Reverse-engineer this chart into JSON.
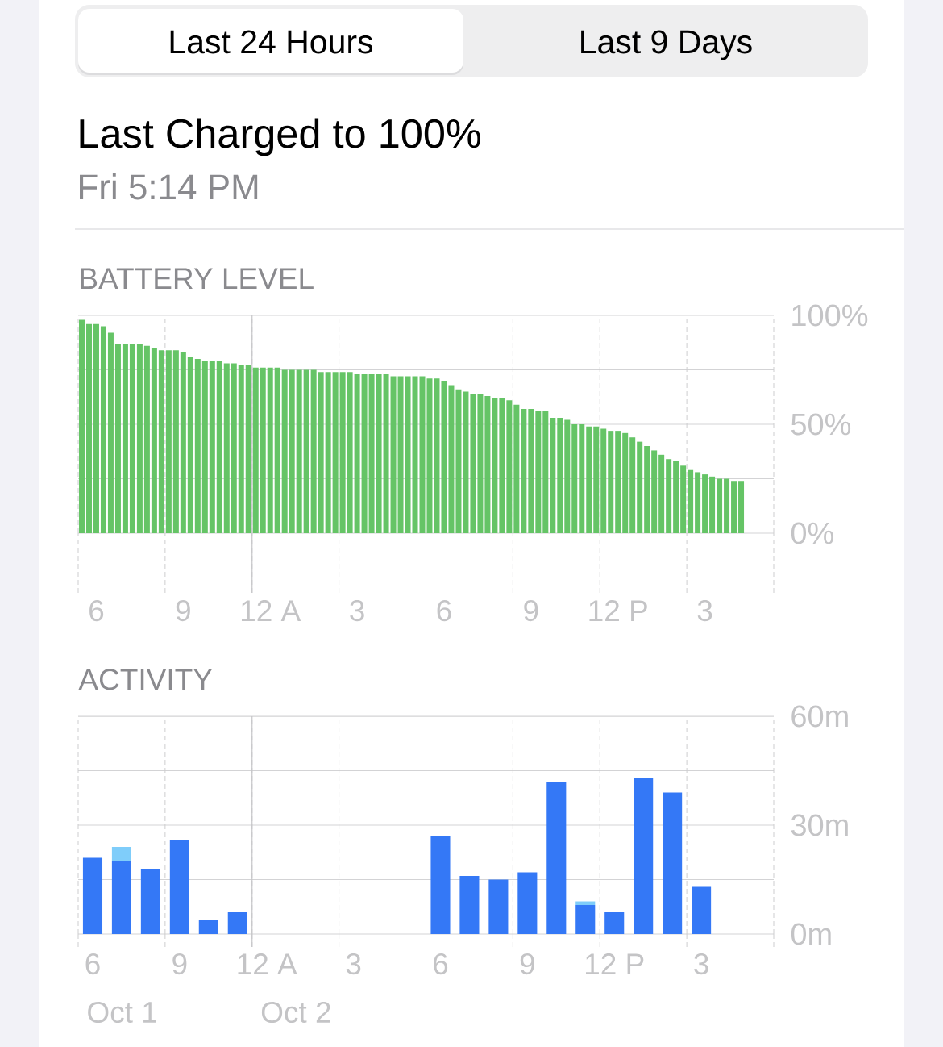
{
  "chart_data": [
    {
      "type": "other",
      "title": "Last Charged to 100%",
      "subtitle": "Fri 5:14 PM",
      "annotations": [
        "Last 24 Hours",
        "Last 9 Days"
      ]
    },
    {
      "type": "bar",
      "title": "BATTERY LEVEL",
      "color": "#65c466",
      "categories": [
        null,
        null,
        "6",
        null,
        null,
        null,
        null,
        null,
        null,
        null,
        null,
        null,
        null,
        null,
        "9",
        null,
        null,
        null,
        null,
        null,
        null,
        null,
        null,
        null,
        null,
        null,
        "12 A",
        null,
        null,
        null,
        null,
        null,
        null,
        null,
        null,
        null,
        null,
        null,
        "3",
        null,
        null,
        null,
        null,
        null,
        null,
        null,
        null,
        null,
        null,
        null,
        "6",
        null,
        null,
        null,
        null,
        null,
        null,
        null,
        null,
        null,
        null,
        null,
        "9",
        null,
        null,
        null,
        null,
        null,
        null,
        null,
        null,
        null,
        null,
        null,
        "12 P",
        null,
        null,
        null,
        null,
        null,
        null,
        null,
        null,
        null,
        null,
        null,
        "3",
        null,
        null,
        null,
        null,
        null,
        null,
        null,
        null,
        null
      ],
      "values": [
        98,
        96,
        96,
        95,
        92,
        87,
        87,
        87,
        87,
        86,
        85,
        84,
        84,
        84,
        83,
        81,
        80,
        79,
        79,
        79,
        78,
        78,
        77,
        77,
        76,
        76,
        76,
        76,
        75,
        75,
        75,
        75,
        75,
        74,
        74,
        74,
        74,
        74,
        73,
        73,
        73,
        73,
        73,
        72,
        72,
        72,
        72,
        72,
        71,
        71,
        70,
        68,
        66,
        65,
        64,
        64,
        63,
        62,
        62,
        61,
        59,
        57,
        57,
        56,
        56,
        53,
        53,
        52,
        50,
        50,
        49,
        49,
        48,
        47,
        47,
        46,
        44,
        42,
        40,
        38,
        36,
        34,
        33,
        31,
        29,
        28,
        27,
        26,
        25,
        25,
        24,
        24,
        null,
        null,
        null,
        null
      ],
      "ylim": [
        0,
        100
      ],
      "yticks": [
        {
          "value": 0,
          "label": "0%"
        },
        {
          "value": 25,
          "label": null
        },
        {
          "value": 50,
          "label": "50%"
        },
        {
          "value": 75,
          "label": null
        },
        {
          "value": 100,
          "label": "100%"
        }
      ],
      "grid": true
    },
    {
      "type": "bar",
      "title": "ACTIVITY",
      "stacked": true,
      "categories": [
        "6",
        null,
        null,
        "9",
        null,
        null,
        "12 A",
        null,
        null,
        "3",
        null,
        null,
        "6",
        null,
        null,
        "9",
        null,
        null,
        "12 P",
        null,
        null,
        "3",
        null,
        null
      ],
      "series": [
        {
          "color": "#3478f6",
          "values": [
            21,
            20,
            18,
            26,
            4,
            6,
            null,
            null,
            null,
            null,
            null,
            null,
            27,
            16,
            15,
            17,
            42,
            8,
            6,
            43,
            39,
            13,
            null,
            null
          ]
        },
        {
          "color": "#7fcdfa",
          "values": [
            null,
            4,
            null,
            null,
            null,
            null,
            null,
            null,
            null,
            null,
            null,
            null,
            null,
            null,
            null,
            null,
            null,
            1,
            null,
            null,
            null,
            null,
            null,
            null
          ]
        }
      ],
      "ylim": [
        0,
        60
      ],
      "yticks": [
        {
          "value": 0,
          "label": "0m"
        },
        {
          "value": 15,
          "label": null
        },
        {
          "value": 30,
          "label": "30m"
        },
        {
          "value": 45,
          "label": null
        },
        {
          "value": 60,
          "label": "60m"
        }
      ],
      "grid": true,
      "annotations": [
        "Oct 1",
        "Oct 2"
      ]
    }
  ]
}
